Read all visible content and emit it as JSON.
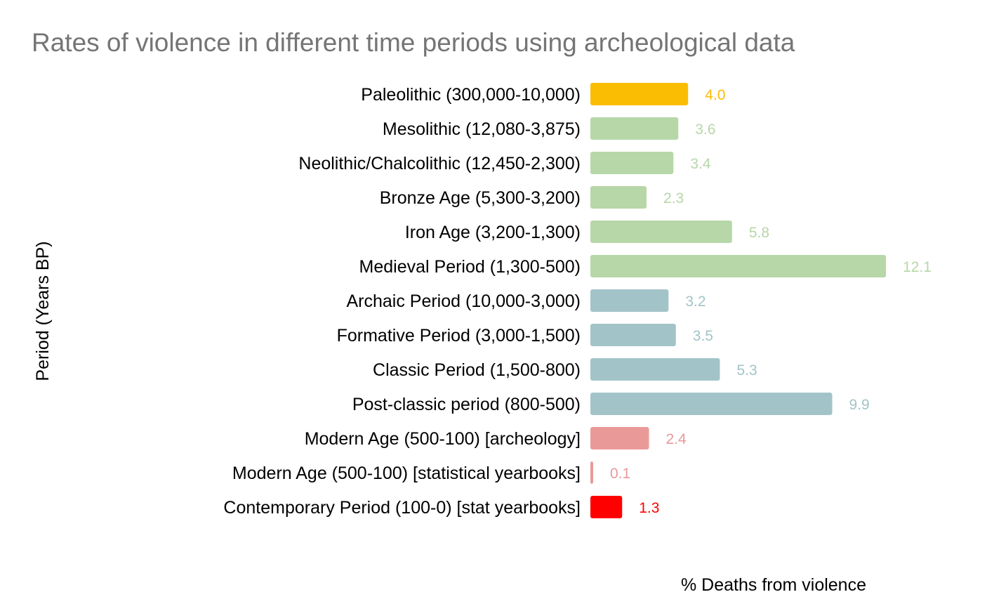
{
  "chart_data": {
    "type": "bar",
    "orientation": "horizontal",
    "title": "Rates of violence in different time periods using archeological data",
    "xlabel": "% Deaths from violence",
    "ylabel": "Period (Years BP)",
    "xlim": [
      0,
      12.1
    ],
    "grid": false,
    "legend": "none",
    "categories": [
      "Paleolithic (300,000-10,000)",
      "Mesolithic (12,080-3,875)",
      "Neolithic/Chalcolithic (12,450-2,300)",
      "Bronze Age (5,300-3,200)",
      "Iron Age (3,200-1,300)",
      "Medieval Period (1,300-500)",
      "Archaic Period (10,000-3,000)",
      "Formative Period (3,000-1,500)",
      "Classic Period (1,500-800)",
      "Post-classic period (800-500)",
      "Modern Age (500-100) [archeology]",
      "Modern Age (500-100) [statistical yearbooks]",
      "Contemporary Period (100-0) [stat yearbooks]"
    ],
    "values": [
      4.0,
      3.6,
      3.4,
      2.3,
      5.8,
      12.1,
      3.2,
      3.5,
      5.3,
      9.9,
      2.4,
      0.1,
      1.3
    ],
    "value_labels": [
      "4.0",
      "3.6",
      "3.4",
      "2.3",
      "5.8",
      "12.1",
      "3.2",
      "3.5",
      "5.3",
      "9.9",
      "2.4",
      "0.1",
      "1.3"
    ],
    "colors": [
      "#fbbc04",
      "#b7d7a8",
      "#b7d7a8",
      "#b7d7a8",
      "#b7d7a8",
      "#b7d7a8",
      "#a2c4c9",
      "#a2c4c9",
      "#a2c4c9",
      "#a2c4c9",
      "#ea9999",
      "#ea9999",
      "#ff0000"
    ]
  }
}
